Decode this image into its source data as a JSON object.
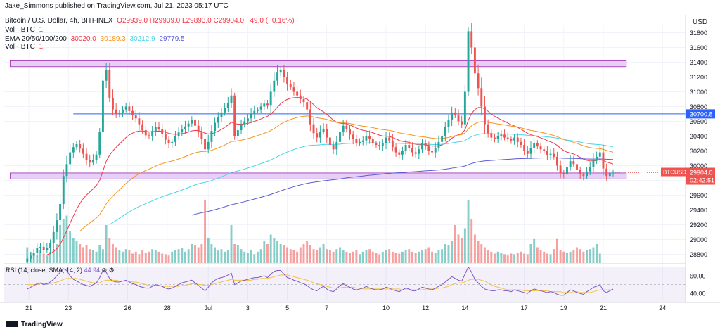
{
  "header": {
    "published": "Jake_Simmons published on TradingView.com, Jul 21, 2023 05:17 UTC",
    "symbol": "Bitcoin / U.S. Dollar, 4h, BITFINEX",
    "ohlc": "O29939.0  H29939.0  L29893.0  C29904.0  −49.0 (−0.16%)",
    "vol_label": "Vol · BTC",
    "vol_value": "1",
    "ema_label": "EMA 20/50/100/200",
    "ema_values": [
      "30020.0",
      "30189.3",
      "30212.9",
      "29779.5"
    ],
    "vol2_label": "Vol · BTC",
    "vol2_value": "1",
    "currency": "USD"
  },
  "rsi": {
    "label": "RSI (14, close, SMA, 14, 2)",
    "value": "44.94"
  },
  "footer": {
    "brand": "TradingView"
  },
  "price_badges": {
    "level_price": "30700.8",
    "symbol_tag": "BTCUSD",
    "last_price": "29904.0",
    "countdown": "02:42:51"
  },
  "colors": {
    "up": "#26a69a",
    "down": "#ef5350",
    "zone": "#e1c4f4",
    "zone_border": "#9c27b0",
    "level": "#2962ff",
    "rsi": "#7e57c2",
    "rsi_ma": "#f5c242"
  },
  "chart_data": {
    "type": "candlestick",
    "y_ticks": [
      28800,
      29000,
      29200,
      29400,
      29600,
      29800,
      30000,
      30200,
      30400,
      30600,
      30800,
      31000,
      31200,
      31400,
      31600,
      31800
    ],
    "ylim": [
      28680,
      31900
    ],
    "x_ticks": [
      {
        "label": "21",
        "x": 0.5
      },
      {
        "label": "23",
        "x": 12.5
      },
      {
        "label": "26",
        "x": 30.5
      },
      {
        "label": "28",
        "x": 42.5
      },
      {
        "label": "Jul",
        "x": 55
      },
      {
        "label": "3",
        "x": 67
      },
      {
        "label": "5",
        "x": 79
      },
      {
        "label": "7",
        "x": 91
      },
      {
        "label": "10",
        "x": 109
      },
      {
        "label": "12",
        "x": 121
      },
      {
        "label": "14",
        "x": 133
      },
      {
        "label": "17",
        "x": 151
      },
      {
        "label": "19",
        "x": 163
      },
      {
        "label": "21",
        "x": 175
      },
      {
        "label": "24",
        "x": 193
      }
    ],
    "xlim": [
      -7,
      200
    ],
    "resistance_zone": [
      31340,
      31420
    ],
    "support_zone": [
      29820,
      29900
    ],
    "level_line": 30700.8,
    "rsi_ticks": [
      40,
      60
    ],
    "rsi_band": [
      30,
      70
    ],
    "rsi_ylim": [
      33,
      72
    ],
    "closes": [
      28740,
      28780,
      28820,
      28880,
      28900,
      28860,
      28880,
      28950,
      29100,
      29260,
      29480,
      29860,
      30020,
      30180,
      30250,
      30290,
      30230,
      30160,
      30080,
      30040,
      30080,
      30150,
      30460,
      31150,
      31300,
      30920,
      30760,
      30700,
      30720,
      30760,
      30800,
      30740,
      30680,
      30640,
      30560,
      30480,
      30410,
      30400,
      30470,
      30520,
      30490,
      30430,
      30350,
      30300,
      30320,
      30400,
      30450,
      30490,
      30530,
      30570,
      30620,
      30540,
      30450,
      30360,
      30220,
      30320,
      30470,
      30580,
      30660,
      30720,
      30780,
      30850,
      30950,
      30400,
      30480,
      30560,
      30600,
      30640,
      30700,
      30740,
      30760,
      30800,
      30840,
      30820,
      31000,
      31150,
      31260,
      31300,
      31200,
      31100,
      31060,
      31000,
      30950,
      30900,
      30860,
      30760,
      30560,
      30440,
      30380,
      30460,
      30500,
      30380,
      30280,
      30220,
      30320,
      30460,
      30540,
      30500,
      30420,
      30360,
      30300,
      30320,
      30340,
      30400,
      30360,
      30300,
      30280,
      30260,
      30300,
      30380,
      30340,
      30250,
      30180,
      30150,
      30200,
      30280,
      30240,
      30180,
      30160,
      30220,
      30300,
      30260,
      30200,
      30180,
      30240,
      30320,
      30400,
      30520,
      30620,
      30720,
      30680,
      30600,
      30560,
      31000,
      31820,
      31600,
      31250,
      31050,
      30800,
      30560,
      30440,
      30380,
      30360,
      30400,
      30420,
      30380,
      30360,
      30340,
      30380,
      30320,
      30280,
      30200,
      30160,
      30240,
      30300,
      30260,
      30220,
      30200,
      30140,
      30160,
      30120,
      30000,
      29900,
      29880,
      29980,
      30060,
      30020,
      29940,
      29880,
      29860,
      29920,
      29980,
      30080,
      30120,
      30180,
      29960,
      29860,
      29900,
      29904
    ],
    "volume_scale": [
      0,
      100
    ],
    "volumes": [
      25,
      18,
      14,
      12,
      20,
      15,
      12,
      18,
      22,
      30,
      60,
      70,
      75,
      50,
      40,
      35,
      30,
      25,
      28,
      22,
      20,
      18,
      28,
      22,
      60,
      40,
      30,
      25,
      20,
      18,
      22,
      20,
      15,
      18,
      14,
      20,
      16,
      18,
      22,
      20,
      18,
      15,
      14,
      12,
      18,
      20,
      22,
      24,
      18,
      22,
      30,
      28,
      25,
      30,
      100,
      40,
      30,
      25,
      20,
      22,
      18,
      20,
      60,
      30,
      28,
      22,
      18,
      16,
      20,
      14,
      18,
      22,
      35,
      30,
      45,
      40,
      35,
      30,
      28,
      25,
      22,
      20,
      18,
      25,
      30,
      35,
      28,
      22,
      20,
      25,
      30,
      22,
      20,
      18,
      22,
      25,
      20,
      18,
      16,
      18,
      20,
      14,
      18,
      20,
      22,
      18,
      16,
      14,
      18,
      20,
      22,
      18,
      16,
      15,
      18,
      20,
      22,
      18,
      16,
      18,
      20,
      22,
      25,
      18,
      16,
      20,
      22,
      30,
      28,
      35,
      60,
      45,
      40,
      55,
      100,
      70,
      45,
      35,
      30,
      25,
      20,
      18,
      15,
      18,
      16,
      14,
      12,
      15,
      14,
      16,
      18,
      15,
      14,
      30,
      38,
      25,
      20,
      18,
      15,
      14,
      22,
      38,
      20,
      18,
      16,
      18,
      20,
      25,
      22,
      18,
      20,
      22,
      25,
      30,
      15
    ],
    "rsi_values": [
      45,
      47,
      49,
      51,
      52,
      50,
      51,
      53,
      56,
      60,
      64,
      68,
      66,
      60,
      56,
      54,
      52,
      50,
      49,
      48,
      50,
      52,
      58,
      66,
      64,
      57,
      54,
      53,
      53,
      54,
      55,
      53,
      51,
      50,
      48,
      47,
      46,
      46,
      48,
      50,
      49,
      48,
      46,
      45,
      46,
      48,
      50,
      52,
      53,
      54,
      55,
      52,
      49,
      46,
      43,
      47,
      52,
      55,
      57,
      58,
      59,
      61,
      63,
      50,
      52,
      54,
      55,
      56,
      57,
      58,
      58,
      59,
      60,
      58,
      62,
      65,
      66,
      66,
      62,
      58,
      57,
      55,
      54,
      52,
      51,
      49,
      46,
      44,
      43,
      46,
      48,
      45,
      43,
      42,
      45,
      49,
      51,
      49,
      47,
      45,
      44,
      45,
      46,
      48,
      46,
      45,
      44,
      44,
      45,
      47,
      46,
      44,
      43,
      42,
      44,
      46,
      45,
      43,
      43,
      45,
      47,
      46,
      45,
      44,
      46,
      48,
      50,
      53,
      56,
      59,
      57,
      55,
      54,
      62,
      70,
      64,
      56,
      52,
      48,
      45,
      44,
      43,
      43,
      44,
      44,
      43,
      43,
      42,
      44,
      43,
      42,
      41,
      40,
      43,
      45,
      44,
      43,
      42,
      41,
      42,
      41,
      39,
      38,
      38,
      41,
      44,
      43,
      41,
      40,
      39,
      42,
      44,
      47,
      48,
      50,
      43,
      41,
      43,
      44.94
    ],
    "rsi_ma_values": [
      50,
      50,
      50,
      50,
      51,
      51,
      51,
      51,
      52,
      53,
      54,
      56,
      57,
      57,
      57,
      57,
      56,
      55,
      54,
      53,
      52,
      52,
      52,
      54,
      55,
      55,
      55,
      55,
      54,
      54,
      54,
      54,
      53,
      53,
      52,
      51,
      50,
      49,
      49,
      49,
      49,
      48,
      48,
      48,
      48,
      48,
      48,
      49,
      49,
      50,
      51,
      51,
      50,
      50,
      49,
      49,
      50,
      51,
      52,
      53,
      54,
      55,
      56,
      55,
      55,
      55,
      55,
      55,
      55,
      56,
      56,
      57,
      57,
      57,
      58,
      59,
      60,
      61,
      61,
      61,
      60,
      59,
      58,
      57,
      56,
      55,
      54,
      52,
      51,
      50,
      49,
      48,
      47,
      46,
      46,
      46,
      47,
      47,
      47,
      47,
      46,
      46,
      45,
      45,
      45,
      45,
      45,
      45,
      45,
      45,
      45,
      45,
      45,
      45,
      44,
      44,
      44,
      44,
      44,
      44,
      44,
      45,
      45,
      45,
      45,
      46,
      46,
      47,
      48,
      50,
      51,
      52,
      52,
      53,
      55,
      56,
      56,
      56,
      55,
      54,
      52,
      50,
      48,
      47,
      46,
      45,
      44,
      44,
      44,
      44,
      44,
      43,
      43,
      43,
      43,
      43,
      43,
      43,
      43,
      42,
      42,
      42,
      42,
      41,
      41,
      41,
      42,
      42,
      41,
      41,
      41,
      41,
      42,
      43,
      44,
      44,
      44,
      44,
      44
    ]
  }
}
